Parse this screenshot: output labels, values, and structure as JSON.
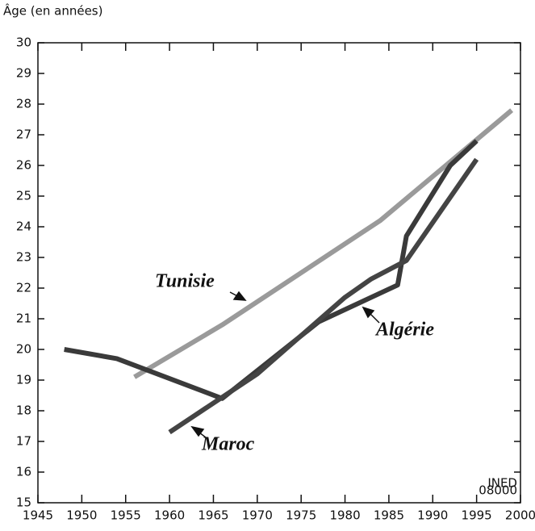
{
  "chart_data": {
    "type": "line",
    "ylabel": "Âge (en années)",
    "xlim": [
      1945,
      2000
    ],
    "xticks": [
      1945,
      1950,
      1955,
      1960,
      1965,
      1970,
      1975,
      1980,
      1985,
      1990,
      1995,
      2000
    ],
    "ylim": [
      15,
      30
    ],
    "yticks": [
      15,
      16,
      17,
      18,
      19,
      20,
      21,
      22,
      23,
      24,
      25,
      26,
      27,
      28,
      29,
      30
    ],
    "series": [
      {
        "name": "Tunisie",
        "color": "#9a9a9a",
        "x": [
          1956,
          1966,
          1984,
          1999
        ],
        "values": [
          19.1,
          20.8,
          24.2,
          27.8
        ]
      },
      {
        "name": "Algérie",
        "color": "#3a3a3a",
        "x": [
          1948,
          1954,
          1966,
          1977,
          1986,
          1987,
          1992,
          1995
        ],
        "values": [
          20.0,
          19.7,
          18.4,
          20.9,
          22.1,
          23.7,
          26.0,
          26.8
        ]
      },
      {
        "name": "Maroc",
        "color": "#444444",
        "x": [
          1960,
          1970,
          1980,
          1983,
          1987,
          1995
        ],
        "values": [
          17.3,
          19.2,
          21.7,
          22.3,
          22.9,
          26.2
        ]
      }
    ],
    "source_note": [
      "INED",
      "08000"
    ]
  }
}
